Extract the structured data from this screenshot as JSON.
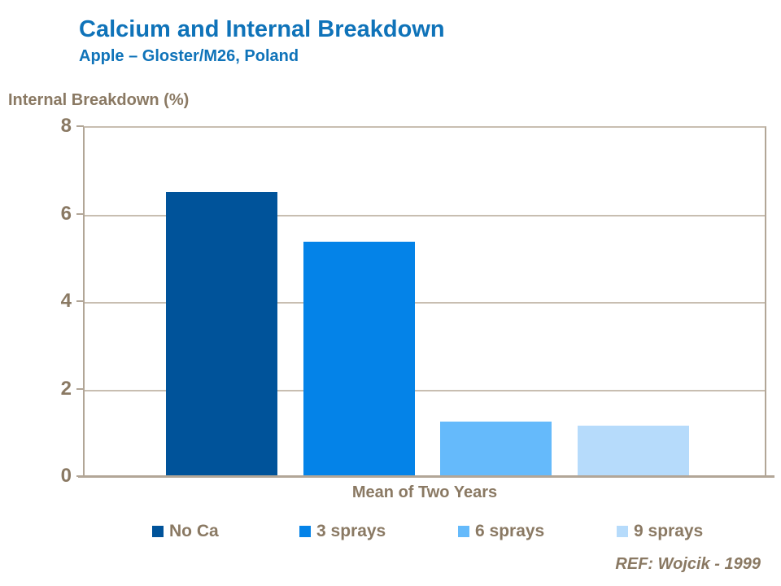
{
  "header": {
    "title": "Calcium and Internal Breakdown",
    "subtitle": "Apple – Gloster/M26, Poland"
  },
  "chart_data": {
    "type": "bar",
    "title": "Calcium and Internal Breakdown",
    "subtitle": "Apple – Gloster/M26, Poland",
    "ylabel": "Internal Breakdown (%)",
    "xlabel": "Mean of Two Years",
    "categories": [
      "Mean of Two Years"
    ],
    "series": [
      {
        "name": "No Ca",
        "values": [
          6.5
        ],
        "color": "#00539a"
      },
      {
        "name": "3 sprays",
        "values": [
          5.35
        ],
        "color": "#0483e8"
      },
      {
        "name": "6 sprays",
        "values": [
          1.25
        ],
        "color": "#65bafb"
      },
      {
        "name": "9 sprays",
        "values": [
          1.15
        ],
        "color": "#b6dbfb"
      }
    ],
    "ylim": [
      0,
      8
    ],
    "yticks": [
      0,
      2,
      4,
      6,
      8
    ],
    "grid": true,
    "legend_position": "bottom"
  },
  "footer": {
    "reference": "REF: Wojcik - 1999"
  },
  "colors": {
    "title_blue": "#0f73b9",
    "axis_text_brown": "#8a7963",
    "grid_tan": "#c8beb1",
    "axis_line_tan": "#b2a697"
  }
}
